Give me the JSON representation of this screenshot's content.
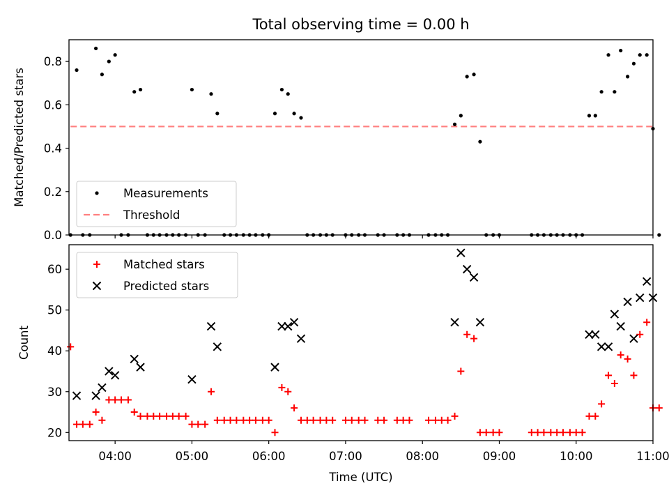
{
  "figure": {
    "title": "Total observing time = 0.00 h"
  },
  "chart_data": [
    {
      "type": "scatter",
      "title": "Total observing time = 0.00 h",
      "xlabel": "",
      "ylabel": "Matched/Predicted stars",
      "xlim": [
        3.4,
        11.0
      ],
      "ylim": [
        0.0,
        0.9
      ],
      "yticks": [
        0.0,
        0.2,
        0.4,
        0.6,
        0.8
      ],
      "xticks": [
        "04:00",
        "05:00",
        "06:00",
        "07:00",
        "08:00",
        "09:00",
        "10:00",
        "11:00"
      ],
      "show_x_tick_labels": false,
      "grid": false,
      "legend": "lower-left",
      "series": [
        {
          "name": "Measurements",
          "kind": "scatter",
          "marker": "dot",
          "color": "#000000",
          "x": [
            3.42,
            3.5,
            3.58,
            3.67,
            3.75,
            3.83,
            3.92,
            4.0,
            4.08,
            4.17,
            4.25,
            4.33,
            4.42,
            4.5,
            4.58,
            4.67,
            4.75,
            4.83,
            4.92,
            5.0,
            5.08,
            5.17,
            5.25,
            5.33,
            5.42,
            5.5,
            5.58,
            5.67,
            5.75,
            5.83,
            5.92,
            6.0,
            6.08,
            6.17,
            6.25,
            6.33,
            6.42,
            6.5,
            6.58,
            6.67,
            6.75,
            6.83,
            7.0,
            7.08,
            7.17,
            7.25,
            7.42,
            7.5,
            7.67,
            7.75,
            7.83,
            8.08,
            8.17,
            8.25,
            8.33,
            8.42,
            8.5,
            8.58,
            8.67,
            8.75,
            8.83,
            8.92,
            9.0,
            9.42,
            9.5,
            9.58,
            9.67,
            9.75,
            9.83,
            9.92,
            10.0,
            10.08,
            10.17,
            10.25,
            10.33,
            10.42,
            10.5,
            10.58,
            10.67,
            10.75,
            10.83,
            10.92,
            11.0,
            11.08
          ],
          "y": [
            0.0,
            0.76,
            0.0,
            0.0,
            0.86,
            0.74,
            0.8,
            0.83,
            0.0,
            0.0,
            0.66,
            0.67,
            0.0,
            0.0,
            0.0,
            0.0,
            0.0,
            0.0,
            0.0,
            0.67,
            0.0,
            0.0,
            0.65,
            0.56,
            0.0,
            0.0,
            0.0,
            0.0,
            0.0,
            0.0,
            0.0,
            0.0,
            0.56,
            0.67,
            0.65,
            0.56,
            0.54,
            0.0,
            0.0,
            0.0,
            0.0,
            0.0,
            0.0,
            0.0,
            0.0,
            0.0,
            0.0,
            0.0,
            0.0,
            0.0,
            0.0,
            0.0,
            0.0,
            0.0,
            0.0,
            0.51,
            0.55,
            0.73,
            0.74,
            0.43,
            0.0,
            0.0,
            0.0,
            0.0,
            0.0,
            0.0,
            0.0,
            0.0,
            0.0,
            0.0,
            0.0,
            0.0,
            0.55,
            0.55,
            0.66,
            0.83,
            0.66,
            0.85,
            0.73,
            0.79,
            0.83,
            0.83,
            0.49,
            0.0
          ]
        },
        {
          "name": "Threshold",
          "kind": "line",
          "style": "dashed",
          "color": "#ff7f7f",
          "x": [
            3.42,
            11.0
          ],
          "y": [
            0.5,
            0.5
          ]
        }
      ]
    },
    {
      "type": "scatter",
      "title": "",
      "xlabel": "Time (UTC)",
      "ylabel": "Count",
      "xlim": [
        3.4,
        11.0
      ],
      "ylim": [
        18,
        66
      ],
      "yticks": [
        20,
        30,
        40,
        50,
        60
      ],
      "xticks": [
        "04:00",
        "05:00",
        "06:00",
        "07:00",
        "08:00",
        "09:00",
        "10:00",
        "11:00"
      ],
      "show_x_tick_labels": true,
      "grid": false,
      "legend": "top-left",
      "series": [
        {
          "name": "Matched stars",
          "kind": "scatter",
          "marker": "plus",
          "color": "#ff0000",
          "x": [
            3.42,
            3.5,
            3.58,
            3.67,
            3.75,
            3.83,
            3.92,
            4.0,
            4.08,
            4.17,
            4.25,
            4.33,
            4.42,
            4.5,
            4.58,
            4.67,
            4.75,
            4.83,
            4.92,
            5.0,
            5.08,
            5.17,
            5.25,
            5.33,
            5.42,
            5.5,
            5.58,
            5.67,
            5.75,
            5.83,
            5.92,
            6.0,
            6.08,
            6.17,
            6.25,
            6.33,
            6.42,
            6.5,
            6.58,
            6.67,
            6.75,
            6.83,
            7.0,
            7.08,
            7.17,
            7.25,
            7.42,
            7.5,
            7.67,
            7.75,
            7.83,
            8.08,
            8.17,
            8.25,
            8.33,
            8.42,
            8.5,
            8.58,
            8.67,
            8.75,
            8.83,
            8.92,
            9.0,
            9.42,
            9.5,
            9.58,
            9.67,
            9.75,
            9.83,
            9.92,
            10.0,
            10.08,
            10.17,
            10.25,
            10.33,
            10.42,
            10.5,
            10.58,
            10.67,
            10.75,
            10.83,
            10.92,
            11.0,
            11.08
          ],
          "y": [
            41,
            22,
            22,
            22,
            25,
            23,
            28,
            28,
            28,
            28,
            25,
            24,
            24,
            24,
            24,
            24,
            24,
            24,
            24,
            22,
            22,
            22,
            30,
            23,
            23,
            23,
            23,
            23,
            23,
            23,
            23,
            23,
            20,
            31,
            30,
            26,
            23,
            23,
            23,
            23,
            23,
            23,
            23,
            23,
            23,
            23,
            23,
            23,
            23,
            23,
            23,
            23,
            23,
            23,
            23,
            24,
            35,
            44,
            43,
            20,
            20,
            20,
            20,
            20,
            20,
            20,
            20,
            20,
            20,
            20,
            20,
            20,
            24,
            24,
            27,
            34,
            32,
            39,
            38,
            34,
            44,
            47,
            26,
            26
          ]
        },
        {
          "name": "Predicted stars",
          "kind": "scatter",
          "marker": "x",
          "color": "#000000",
          "x": [
            3.5,
            3.75,
            3.83,
            3.92,
            4.0,
            4.25,
            4.33,
            5.0,
            5.25,
            5.33,
            6.08,
            6.17,
            6.25,
            6.33,
            6.42,
            8.42,
            8.5,
            8.58,
            8.67,
            8.75,
            10.17,
            10.25,
            10.33,
            10.42,
            10.5,
            10.58,
            10.67,
            10.75,
            10.83,
            10.92,
            11.0
          ],
          "y": [
            29,
            29,
            31,
            35,
            34,
            38,
            36,
            33,
            46,
            41,
            36,
            46,
            46,
            47,
            43,
            47,
            64,
            60,
            58,
            47,
            44,
            44,
            41,
            41,
            49,
            46,
            52,
            43,
            53,
            57,
            53
          ]
        }
      ]
    }
  ]
}
